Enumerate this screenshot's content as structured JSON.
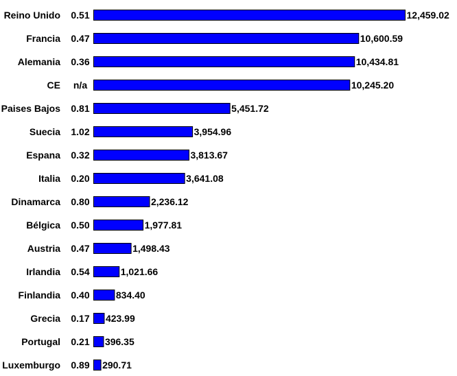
{
  "chart_data": {
    "type": "bar",
    "orientation": "horizontal",
    "title": "",
    "xlabel": "",
    "ylabel": "",
    "grid": false,
    "legend": "none",
    "bar_color": "#0000ff",
    "bar_border_color": "#000000",
    "xlim": [
      0,
      12459.02
    ],
    "categories": [
      "Reino Unido",
      "Francia",
      "Alemania",
      "CE",
      "Paises Bajos",
      "Suecia",
      "Espana",
      "Italia",
      "Dinamarca",
      "Bélgica",
      "Austria",
      "Irlandia",
      "Finlandia",
      "Grecia",
      "Portugal",
      "Luxemburgo"
    ],
    "ratios": [
      "0.51",
      "0.47",
      "0.36",
      "n/a",
      "0.81",
      "1.02",
      "0.32",
      "0.20",
      "0.80",
      "0.50",
      "0.47",
      "0.54",
      "0.40",
      "0.17",
      "0.21",
      "0.89"
    ],
    "values": [
      12459.02,
      10600.59,
      10434.81,
      10245.2,
      5451.72,
      3954.96,
      3813.67,
      3641.08,
      2236.12,
      1977.81,
      1498.43,
      1021.66,
      834.4,
      423.99,
      396.35,
      290.71
    ],
    "value_labels": [
      "12,459.02",
      "10,600.59",
      "10,434.81",
      "10,245.20",
      "5,451.72",
      "3,954.96",
      "3,813.67",
      "3,641.08",
      "2,236.12",
      "1,977.81",
      "1,498.43",
      "1,021.66",
      "834.40",
      "423.99",
      "396.35",
      "290.71"
    ]
  }
}
